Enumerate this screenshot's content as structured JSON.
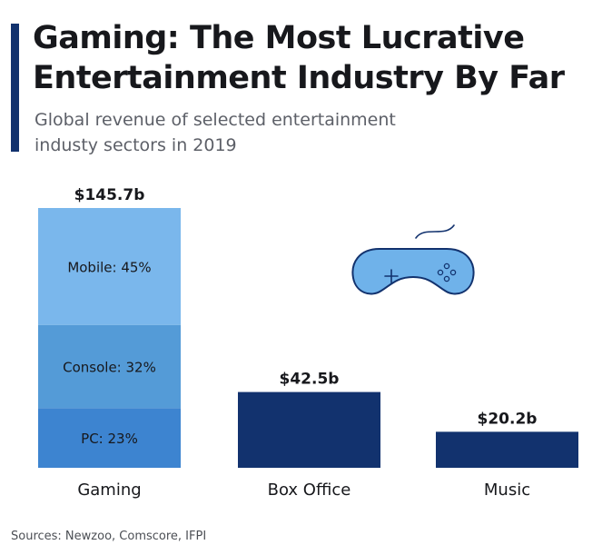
{
  "header": {
    "title_line1": "Gaming: The Most Lucrative",
    "title_line2": "Entertainment Industry By Far",
    "subtitle_line1": "Global revenue of selected entertainment",
    "subtitle_line2": "industy sectors in 2019"
  },
  "footer": {
    "source": "Sources: Newzoo, Comscore, IFPI"
  },
  "icon": {
    "name": "game-controller-icon",
    "color": "#6fb2ea",
    "stroke": "#12326e"
  },
  "colors": {
    "accent": "#12326e",
    "mobile": "#7ab7ec",
    "console": "#549bd7",
    "pc": "#3d84d0",
    "bar": "#12326e"
  },
  "chart_data": {
    "type": "bar",
    "stacked": true,
    "categories": [
      "Gaming",
      "Box Office",
      "Music"
    ],
    "values": [
      145.7,
      42.5,
      20.2
    ],
    "value_labels": [
      "$145.7b",
      "$42.5b",
      "$20.2b"
    ],
    "unit": "billion USD",
    "ylim": [
      0,
      145.7
    ],
    "grid": false,
    "gaming_breakdown": [
      {
        "name": "PC",
        "share": 23,
        "label": "PC: 23%"
      },
      {
        "name": "Console",
        "share": 32,
        "label": "Console: 32%"
      },
      {
        "name": "Mobile",
        "share": 45,
        "label": "Mobile: 45%"
      }
    ]
  }
}
